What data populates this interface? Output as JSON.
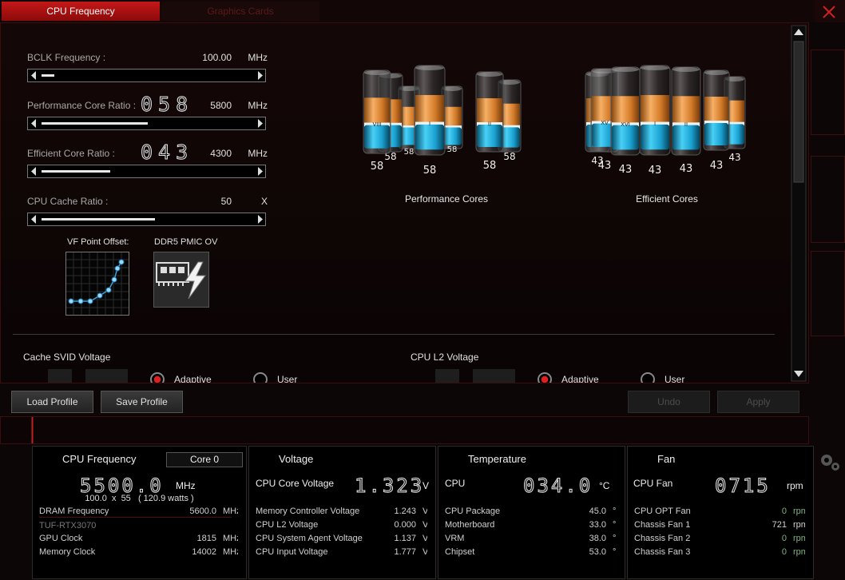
{
  "tabs": [
    "CPU Frequency",
    "Graphics Cards"
  ],
  "settings": [
    {
      "label": "BCLK Frequency :",
      "value": "100.00",
      "unit": "MHz"
    },
    {
      "label": "Performance Core Ratio :",
      "ratio": "058",
      "value": "5800",
      "unit": "MHz"
    },
    {
      "label": "Efficient Core Ratio :",
      "ratio": "043",
      "value": "4300",
      "unit": "MHz"
    },
    {
      "label": "CPU Cache Ratio :",
      "value": "50",
      "unit": "X"
    }
  ],
  "tools": [
    "VF Point Offset:",
    "DDR5 PMIC OV"
  ],
  "performance_cores": {
    "title": "Performance Cores",
    "cores": [
      {
        "value": "58"
      },
      {
        "value": "58"
      },
      {
        "value": "58"
      },
      {
        "label": "VIII",
        "value": "58"
      },
      {
        "value": "58"
      },
      {
        "label": "II",
        "value": "58"
      },
      {
        "label": "I",
        "value": "58"
      }
    ]
  },
  "efficient_cores": {
    "title": "Efficient Cores",
    "cores": [
      {
        "value": "43"
      },
      {
        "value": "43"
      },
      {
        "label": "XV",
        "value": "43"
      },
      {
        "value": "43"
      },
      {
        "label": "XVI",
        "value": "43"
      },
      {
        "label": "II",
        "value": "43"
      },
      {
        "label": "I",
        "value": "43"
      }
    ]
  },
  "voltages": [
    {
      "label": "Cache SVID Voltage",
      "options": [
        "Adaptive",
        "User"
      ]
    },
    {
      "label": "CPU L2 Voltage",
      "options": [
        "Adaptive",
        "User"
      ]
    }
  ],
  "buttons": [
    "Load Profile",
    "Save Profile",
    "Undo",
    "Apply"
  ],
  "monitor": [
    {
      "title": "CPU Frequency",
      "selector": "Core 0",
      "main": {
        "value": "5500.0",
        "unit": "MHz"
      },
      "detail": "100.0  x  55   ( 120.9 watts )",
      "rows": [
        {
          "label": "DRAM Frequency",
          "value": "5600.0",
          "unit": "MHz"
        },
        {
          "heading": "TUF-RTX3070"
        },
        {
          "label": "GPU Clock",
          "value": "1815",
          "unit": "MHz"
        },
        {
          "label": "Memory Clock",
          "value": "14002",
          "unit": "MHz"
        }
      ]
    },
    {
      "title": "Voltage",
      "main": {
        "label": "CPU Core Voltage",
        "value": "1.323",
        "unit": "V"
      },
      "rows": [
        {
          "label": "Memory Controller Voltage",
          "value": "1.243",
          "unit": "V"
        },
        {
          "label": "CPU L2 Voltage",
          "value": "0.000",
          "unit": "V"
        },
        {
          "label": "CPU System Agent Voltage",
          "value": "1.137",
          "unit": "V"
        },
        {
          "label": "CPU Input Voltage",
          "value": "1.777",
          "unit": "V"
        }
      ]
    },
    {
      "title": "Temperature",
      "main": {
        "label": "CPU",
        "value": "034.0",
        "unit": "°C"
      },
      "rows": [
        {
          "label": "CPU Package",
          "value": "45.0",
          "unit": "°C"
        },
        {
          "label": "Motherboard",
          "value": "33.0",
          "unit": "°C"
        },
        {
          "label": "VRM",
          "value": "38.0",
          "unit": "°C"
        },
        {
          "label": "Chipset",
          "value": "53.0",
          "unit": "°C"
        }
      ]
    },
    {
      "title": "Fan",
      "main": {
        "label": "CPU Fan",
        "value": "0715",
        "unit": "rpm"
      },
      "rows": [
        {
          "label": "CPU OPT Fan",
          "value": "0",
          "unit": "rpm"
        },
        {
          "label": "Chassis Fan 1",
          "value": "721",
          "unit": "rpm"
        },
        {
          "label": "Chassis Fan 2",
          "value": "0",
          "unit": "rpm"
        },
        {
          "label": "Chassis Fan 3",
          "value": "0",
          "unit": "rpm"
        }
      ]
    }
  ]
}
